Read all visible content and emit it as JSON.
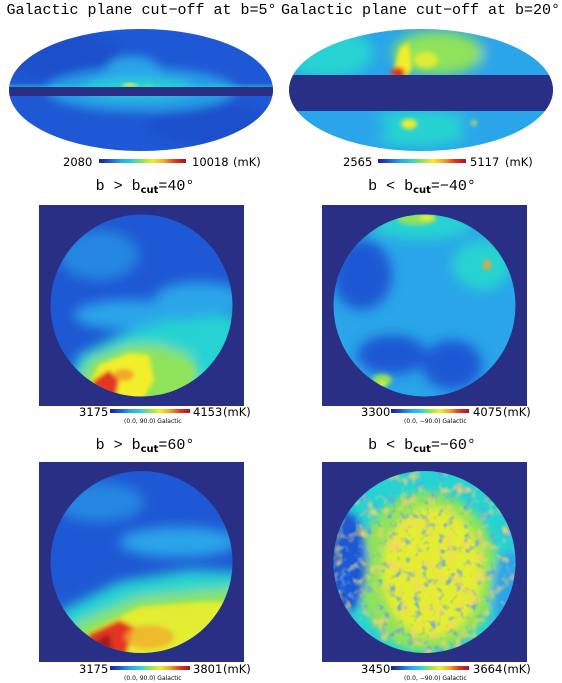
{
  "palette": {
    "background_blue": "#2a2f86",
    "colormap": [
      "#1b1f8a",
      "#1f58d4",
      "#2aa5e9",
      "#27d3d2",
      "#8fe35a",
      "#f2ee2a",
      "#f3a52b",
      "#e33424",
      "#a4161c"
    ]
  },
  "panels": [
    {
      "id": "p1",
      "title_text": "Galactic plane cut−off at b=5°",
      "cb_min": "2080",
      "cb_max": "10018",
      "cb_unit": "(mK)",
      "coord_label": ""
    },
    {
      "id": "p2",
      "title_text": "Galactic plane cut−off at b=20°",
      "cb_min": "2565",
      "cb_max": "5117",
      "cb_unit": "(mK)",
      "coord_label": ""
    },
    {
      "id": "p3",
      "title_pre": "b > b",
      "title_sub": "cut",
      "title_post": "=40°",
      "cb_min": "3175",
      "cb_max": "4153",
      "cb_unit": "(mK)",
      "coord_label": "(0.0, 90.0) Galactic"
    },
    {
      "id": "p4",
      "title_pre": "b < b",
      "title_sub": "cut",
      "title_post": "=−40°",
      "cb_min": "3300",
      "cb_max": "4075",
      "cb_unit": "(mK)",
      "coord_label": "(0.0, −90.0) Galactic"
    },
    {
      "id": "p5",
      "title_pre": "b > b",
      "title_sub": "cut",
      "title_post": "=60°",
      "cb_min": "3175",
      "cb_max": "3801",
      "cb_unit": "(mK)",
      "coord_label": "(0.0, 90.0) Galactic"
    },
    {
      "id": "p6",
      "title_pre": "b < b",
      "title_sub": "cut",
      "title_post": "=−60°",
      "cb_min": "3450",
      "cb_max": "3664",
      "cb_unit": "(mK)",
      "coord_label": "(0.0, −90.0) Galactic"
    }
  ]
}
